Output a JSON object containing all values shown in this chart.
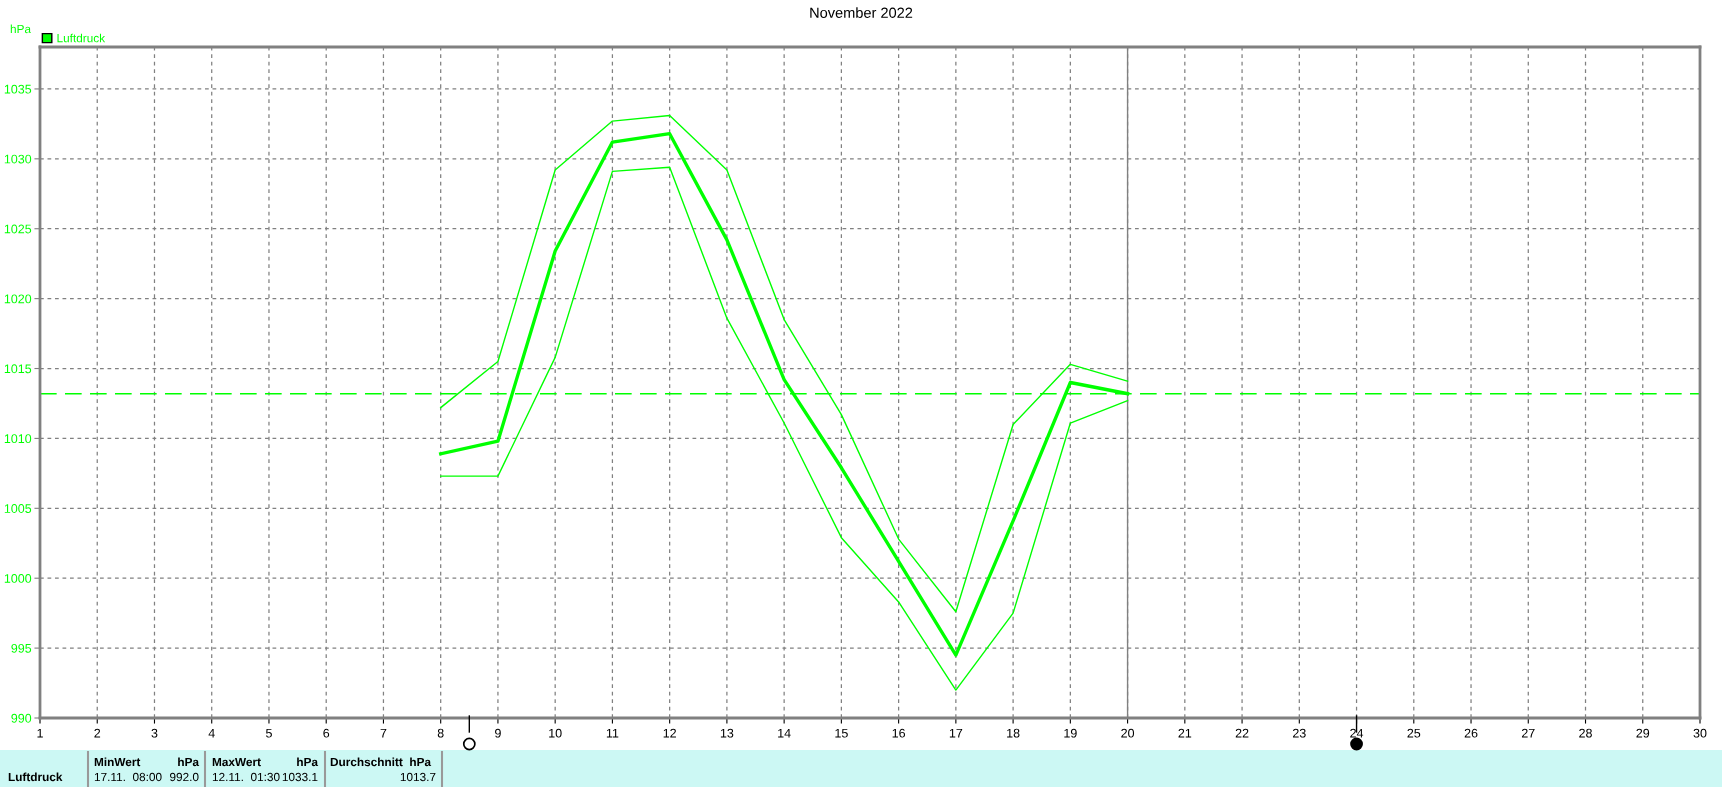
{
  "chart_data": {
    "type": "line",
    "title": "November 2022",
    "ylabel": "hPa",
    "xlim": [
      1,
      30
    ],
    "xticks": [
      1,
      2,
      3,
      4,
      5,
      6,
      7,
      8,
      9,
      10,
      11,
      12,
      13,
      14,
      15,
      16,
      17,
      18,
      19,
      20,
      21,
      22,
      23,
      24,
      25,
      26,
      27,
      28,
      29,
      30
    ],
    "ylim": [
      990,
      1038
    ],
    "yticks": [
      990,
      995,
      1000,
      1005,
      1010,
      1015,
      1020,
      1025,
      1030,
      1035
    ],
    "grid": true,
    "legend": "top left",
    "marker": "none",
    "line_style": "solid",
    "series": [
      {
        "name": "Luftdruck",
        "color": "#00ff00",
        "x": [
          8,
          9,
          10,
          11,
          12,
          13,
          14,
          15,
          16,
          17,
          18,
          19,
          20
        ],
        "values": [
          1008.9,
          1009.8,
          1023.4,
          1031.2,
          1031.8,
          1024.2,
          1014.2,
          1007.9,
          1001.2,
          994.5,
          1004.1,
          1014.0,
          1013.2
        ]
      },
      {
        "color": "#00ff00",
        "x": [
          8,
          9,
          10,
          11,
          12,
          13,
          14,
          15,
          16,
          17,
          18,
          19,
          20
        ],
        "values": [
          1012.2,
          1015.5,
          1029.2,
          1032.7,
          1033.1,
          1029.2,
          1018.5,
          1011.7,
          1002.8,
          997.6,
          1011.0,
          1015.3,
          1014.1
        ]
      },
      {
        "color": "#00ff00",
        "x": [
          8,
          9,
          10,
          11,
          12,
          13,
          14,
          15,
          16,
          17,
          18,
          19,
          20
        ],
        "values": [
          1007.3,
          1007.3,
          1015.8,
          1029.1,
          1029.4,
          1018.6,
          1011.1,
          1002.9,
          998.3,
          992.0,
          997.5,
          1011.1,
          1012.7
        ]
      }
    ],
    "ref_lines": [
      {
        "axis": "y",
        "value": 1013.2,
        "color": "#00ff00",
        "line_style": "dashed"
      },
      {
        "axis": "x",
        "value": 20,
        "color": "#808080",
        "line_style": "solid"
      }
    ],
    "annotations": [
      "Luftdruck",
      "MinWert",
      "hPa",
      "17.11.  08:00",
      "992.0",
      "MaxWert",
      "hPa",
      "12.11.  01:30",
      "1033.1",
      "Durchschnitt  hPa",
      "1013.7"
    ]
  }
}
